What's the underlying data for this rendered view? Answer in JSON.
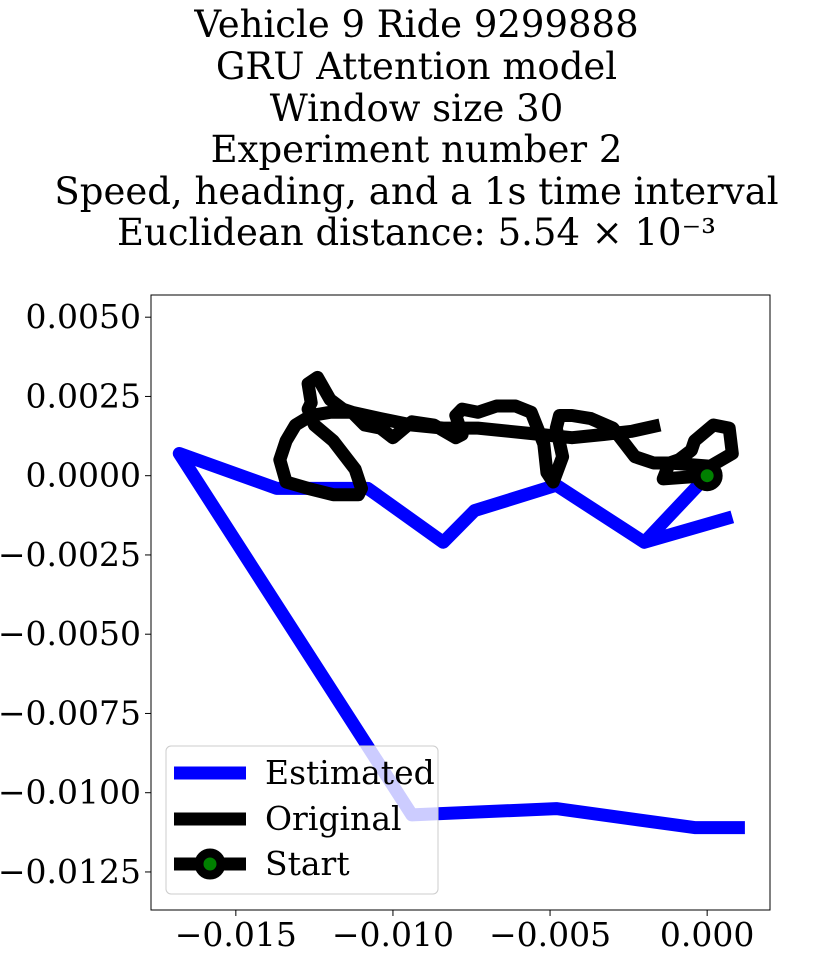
{
  "chart_data": {
    "type": "line",
    "title_lines": [
      "Vehicle 9 Ride 9299888",
      "GRU Attention model",
      "Window size 30",
      "Experiment number 2",
      "Speed, heading, and a 1s time interval",
      "Euclidean distance: 5.54 × 10⁻³"
    ],
    "xlim": [
      -0.0177,
      0.002
    ],
    "ylim": [
      -0.0137,
      0.0057
    ],
    "x_ticks": [
      -0.015,
      -0.01,
      -0.005,
      0.0
    ],
    "x_tick_labels": [
      "−0.015",
      "−0.010",
      "−0.005",
      "0.000"
    ],
    "y_ticks": [
      0.005,
      0.0025,
      0.0,
      -0.0025,
      -0.005,
      -0.0075,
      -0.01,
      -0.0125
    ],
    "y_tick_labels": [
      "0.0050",
      "0.0025",
      "0.0000",
      "−0.0025",
      "−0.0050",
      "−0.0075",
      "−0.0100",
      "−0.0125"
    ],
    "grid": false,
    "legend": {
      "position": "lower-left",
      "entries": [
        "Estimated",
        "Original",
        "Start"
      ]
    },
    "series": [
      {
        "name": "Estimated",
        "color": "#0000ff",
        "x": [
          0.0008,
          -0.002,
          0.0,
          -0.002,
          -0.0048,
          -0.0074,
          -0.0084,
          -0.0108,
          -0.0137,
          -0.0168,
          -0.0094,
          -0.0048,
          -0.0004,
          0.0012
        ],
        "y": [
          -0.0013,
          -0.0021,
          0.0,
          -0.0021,
          -0.0003,
          -0.0011,
          -0.0021,
          -0.0004,
          -0.0004,
          0.0007,
          -0.0107,
          -0.0105,
          -0.0111,
          -0.0111
        ]
      },
      {
        "name": "Original",
        "color": "#000000",
        "x": [
          0.0,
          -0.0014,
          -0.0012,
          0.0001,
          0.0008,
          0.0007,
          0.0002,
          -0.0004,
          -0.0005,
          -0.0009,
          -0.0012,
          -0.0017,
          -0.0023,
          -0.003,
          -0.0037,
          -0.0043,
          -0.0047,
          -0.0048,
          -0.0046,
          -0.0049,
          -0.0051,
          -0.0052,
          -0.0056,
          -0.0061,
          -0.0067,
          -0.0073,
          -0.0078,
          -0.008,
          -0.0078,
          -0.008,
          -0.0087,
          -0.0094,
          -0.01,
          -0.0104,
          -0.0109,
          -0.0113,
          -0.0116,
          -0.012,
          -0.0124,
          -0.0127,
          -0.0126,
          -0.0127,
          -0.0125,
          -0.0119,
          -0.0112,
          -0.011,
          -0.0111,
          -0.0119,
          -0.0127,
          -0.0134,
          -0.0136,
          -0.0134,
          -0.0131,
          -0.0126,
          -0.012,
          -0.0113,
          -0.0104,
          -0.0094,
          -0.0084,
          -0.0073,
          -0.0063,
          -0.0053,
          -0.0043,
          -0.0033,
          -0.0024,
          -0.0015
        ],
        "y": [
          0.0,
          -0.0001,
          0.0004,
          0.0003,
          0.0007,
          0.0015,
          0.0016,
          0.0011,
          0.0008,
          0.0005,
          0.0004,
          0.0004,
          0.0006,
          0.0015,
          0.0018,
          0.0019,
          0.0019,
          0.0015,
          0.0006,
          -0.0002,
          0.0001,
          0.001,
          0.002,
          0.0022,
          0.0022,
          0.002,
          0.0021,
          0.0019,
          0.0013,
          0.0012,
          0.0016,
          0.0017,
          0.0012,
          0.0015,
          0.0016,
          0.002,
          0.0021,
          0.0024,
          0.0031,
          0.0029,
          0.0023,
          0.0021,
          0.0016,
          0.0011,
          0.0002,
          -0.0004,
          -0.0006,
          -0.0006,
          -0.0004,
          -0.0002,
          0.0005,
          0.0011,
          0.0016,
          0.0019,
          0.002,
          0.002,
          0.0018,
          0.0016,
          0.0015,
          0.0015,
          0.0014,
          0.0013,
          0.0012,
          0.0013,
          0.0014,
          0.0016
        ]
      }
    ],
    "start_point": {
      "name": "Start",
      "x": 0.0,
      "y": 0.0,
      "face_color": "#008000",
      "edge_color": "#000000"
    }
  }
}
